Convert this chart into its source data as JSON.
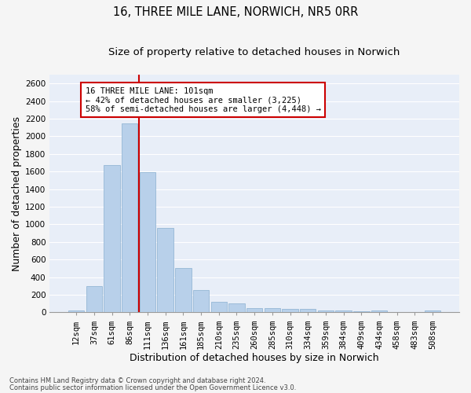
{
  "title": "16, THREE MILE LANE, NORWICH, NR5 0RR",
  "subtitle": "Size of property relative to detached houses in Norwich",
  "xlabel": "Distribution of detached houses by size in Norwich",
  "ylabel": "Number of detached properties",
  "footer1": "Contains HM Land Registry data © Crown copyright and database right 2024.",
  "footer2": "Contains public sector information licensed under the Open Government Licence v3.0.",
  "categories": [
    "12sqm",
    "37sqm",
    "61sqm",
    "86sqm",
    "111sqm",
    "136sqm",
    "161sqm",
    "185sqm",
    "210sqm",
    "235sqm",
    "260sqm",
    "285sqm",
    "310sqm",
    "334sqm",
    "359sqm",
    "384sqm",
    "409sqm",
    "434sqm",
    "458sqm",
    "483sqm",
    "508sqm"
  ],
  "values": [
    25,
    300,
    1670,
    2150,
    1595,
    960,
    505,
    250,
    120,
    100,
    50,
    50,
    35,
    35,
    20,
    20,
    15,
    20,
    5,
    5,
    25
  ],
  "bar_color": "#b8d0ea",
  "bar_edge_color": "#8ab0d0",
  "bg_color": "#e8eef8",
  "grid_color": "#ffffff",
  "vline_color": "#cc0000",
  "annotation_text": "16 THREE MILE LANE: 101sqm\n← 42% of detached houses are smaller (3,225)\n58% of semi-detached houses are larger (4,448) →",
  "annotation_box_facecolor": "#ffffff",
  "annotation_box_edgecolor": "#cc0000",
  "ylim": [
    0,
    2700
  ],
  "yticks": [
    0,
    200,
    400,
    600,
    800,
    1000,
    1200,
    1400,
    1600,
    1800,
    2000,
    2200,
    2400,
    2600
  ],
  "title_fontsize": 10.5,
  "subtitle_fontsize": 9.5,
  "xlabel_fontsize": 9,
  "ylabel_fontsize": 9,
  "tick_fontsize": 7.5,
  "footer_fontsize": 6,
  "annot_fontsize": 7.5,
  "vline_x": 3.5
}
